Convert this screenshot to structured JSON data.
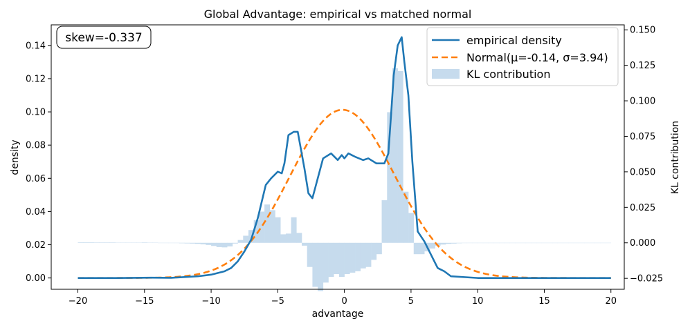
{
  "chart_data": {
    "type": "line",
    "title": "Global Advantage: empirical vs matched normal",
    "xlabel": "advantage",
    "ylabel": "density",
    "y2label": "KL contribution",
    "xlim": [
      -22.0,
      21.0
    ],
    "ylim": [
      -0.0068,
      0.1524
    ],
    "y2lim": [
      -0.0327,
      0.1535
    ],
    "xticks": [
      -20,
      -15,
      -10,
      -5,
      0,
      5,
      10,
      15,
      20
    ],
    "xtick_labels": [
      "−20",
      "−15",
      "−10",
      "−5",
      "0",
      "5",
      "10",
      "15",
      "20"
    ],
    "yticks": [
      0.0,
      0.02,
      0.04,
      0.06,
      0.08,
      0.1,
      0.12,
      0.14
    ],
    "ytick_labels": [
      "0.00",
      "0.02",
      "0.04",
      "0.06",
      "0.08",
      "0.10",
      "0.12",
      "0.14"
    ],
    "y2ticks": [
      -0.025,
      0.0,
      0.025,
      0.05,
      0.075,
      0.1,
      0.125,
      0.15
    ],
    "y2tick_labels": [
      "−0.025",
      "0.000",
      "0.025",
      "0.050",
      "0.075",
      "0.100",
      "0.125",
      "0.150"
    ],
    "annotation": "skew=-0.337",
    "legend_position": "top-right",
    "series": [
      {
        "name": "empirical density",
        "kind": "line",
        "axis": "left",
        "color": "#1f77b4",
        "x": [
          -20,
          -17,
          -14.5,
          -13,
          -11,
          -10,
          -9,
          -8.5,
          -8,
          -7.5,
          -7,
          -6.5,
          -6.2,
          -5.9,
          -5.5,
          -5,
          -4.7,
          -4.5,
          -4.2,
          -3.8,
          -3.5,
          -3,
          -2.7,
          -2.4,
          -2,
          -1.6,
          -1,
          -0.5,
          -0.2,
          0,
          0.3,
          0.8,
          1.4,
          1.8,
          2.4,
          3.0,
          3.3,
          3.5,
          3.7,
          4.0,
          4.3,
          4.5,
          4.8,
          5.1,
          5.5,
          6,
          6.5,
          7,
          7.5,
          8,
          10,
          15,
          20
        ],
        "y": [
          0.0,
          0.0,
          0.0002,
          0.0001,
          0.001,
          0.002,
          0.004,
          0.006,
          0.01,
          0.016,
          0.023,
          0.036,
          0.046,
          0.056,
          0.06,
          0.064,
          0.063,
          0.069,
          0.086,
          0.088,
          0.088,
          0.066,
          0.051,
          0.048,
          0.06,
          0.072,
          0.075,
          0.071,
          0.074,
          0.072,
          0.075,
          0.073,
          0.071,
          0.072,
          0.069,
          0.069,
          0.075,
          0.098,
          0.122,
          0.14,
          0.145,
          0.13,
          0.11,
          0.07,
          0.028,
          0.022,
          0.014,
          0.006,
          0.004,
          0.001,
          0.0,
          0.0,
          0.0
        ]
      },
      {
        "name": "Normal(μ=-0.14, σ=3.94)",
        "kind": "dashed-line",
        "axis": "left",
        "color": "#ff7f0e",
        "mu": -0.14,
        "sigma": 3.94,
        "x_range": [
          -20,
          20
        ]
      },
      {
        "name": "KL contribution",
        "kind": "bar",
        "axis": "right",
        "color": "#c6dbed",
        "bin_width": 0.4,
        "x": [
          -19.8,
          -19.4,
          -19,
          -18.6,
          -18.2,
          -17.8,
          -17.4,
          -17,
          -16.6,
          -16.2,
          -15.8,
          -15.4,
          -15,
          -14.6,
          -14.2,
          -13.8,
          -13.4,
          -13,
          -12.6,
          -12.2,
          -11.8,
          -11.4,
          -11,
          -10.6,
          -10.2,
          -9.8,
          -9.4,
          -9,
          -8.6,
          -8.2,
          -7.8,
          -7.4,
          -7,
          -6.6,
          -6.2,
          -5.8,
          -5.4,
          -5,
          -4.6,
          -4.2,
          -3.8,
          -3.4,
          -3,
          -2.6,
          -2.2,
          -1.8,
          -1.4,
          -1,
          -0.6,
          -0.2,
          0.2,
          0.6,
          1,
          1.4,
          1.8,
          2.2,
          2.6,
          3,
          3.4,
          3.8,
          4.2,
          4.6,
          5,
          5.4,
          5.8,
          6.2,
          6.6,
          7,
          7.4,
          7.8,
          8.2,
          8.6,
          9,
          9.4,
          9.8,
          10.2,
          10.6,
          11,
          11.4,
          11.8,
          12.2,
          12.6,
          13,
          13.4,
          13.8,
          14.2,
          14.6,
          15,
          15.4,
          15.8,
          16.2,
          16.6,
          17,
          17.4,
          17.8,
          18.2,
          18.6,
          19,
          19.4,
          19.8
        ],
        "values": [
          0.0004,
          0.0004,
          0.0004,
          0.0003,
          0.0003,
          0.0003,
          0.0003,
          0.0002,
          0.0002,
          0.0002,
          0.0002,
          0.0002,
          0.0003,
          0.0002,
          0.0001,
          0.0,
          -0.0001,
          -0.0002,
          -0.0002,
          -0.0003,
          -0.0004,
          -0.0005,
          -0.0007,
          -0.001,
          -0.0015,
          -0.0022,
          -0.003,
          -0.0032,
          -0.0025,
          -0.0005,
          0.002,
          0.005,
          0.009,
          0.016,
          0.022,
          0.027,
          0.023,
          0.018,
          0.006,
          0.0065,
          0.018,
          0.007,
          -0.002,
          -0.017,
          -0.031,
          -0.034,
          -0.028,
          -0.024,
          -0.022,
          -0.024,
          -0.022,
          -0.021,
          -0.02,
          -0.018,
          -0.017,
          -0.012,
          -0.008,
          0.03,
          0.092,
          0.123,
          0.121,
          0.036,
          0.021,
          -0.008,
          -0.008,
          -0.006,
          -0.004,
          -0.002,
          -0.0012,
          -0.0007,
          -0.0005,
          -0.0003,
          -0.0002,
          -0.0001,
          -0.0001,
          -0.0001,
          -0.0001,
          -0.0001,
          0.0,
          0.0,
          0.0,
          0.0,
          0.0,
          0.0,
          0.0,
          0.0,
          0.0,
          0.0,
          0.0,
          0.0,
          0.0,
          0.0,
          0.0,
          0.0,
          0.0,
          0.0,
          0.0,
          0.0,
          0.0,
          0.0
        ]
      }
    ]
  },
  "colors": {
    "empirical": "#1f77b4",
    "normal": "#ff7f0e",
    "kl": "#c6dbed"
  }
}
